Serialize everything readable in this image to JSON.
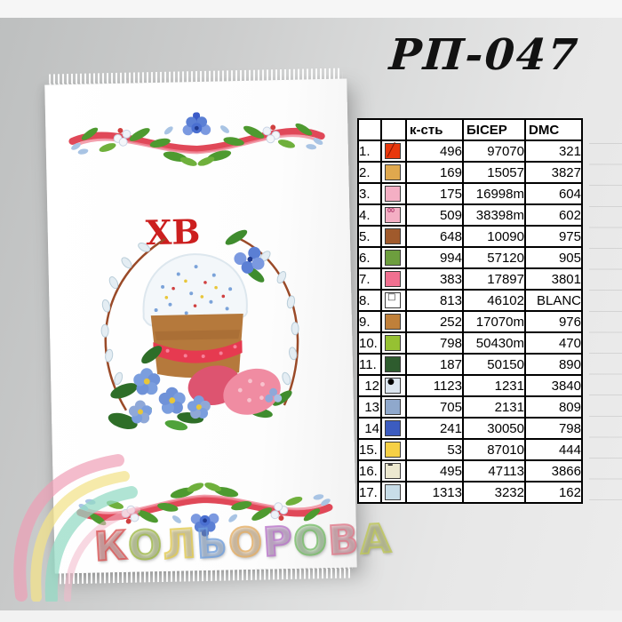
{
  "page": {
    "code": "РП-047"
  },
  "towel": {
    "monogram": "ХВ"
  },
  "brand": {
    "name": "КОЛЬОРОВА",
    "letters": [
      {
        "ch": "К",
        "color": "#d95050"
      },
      {
        "ch": "О",
        "color": "#9fb944"
      },
      {
        "ch": "Л",
        "color": "#e3cb4e"
      },
      {
        "ch": "Ь",
        "color": "#6f9fdd"
      },
      {
        "ch": "О",
        "color": "#e5ad62"
      },
      {
        "ch": "Р",
        "color": "#b873c9"
      },
      {
        "ch": "О",
        "color": "#77bd68"
      },
      {
        "ch": "В",
        "color": "#e07788"
      },
      {
        "ch": "А",
        "color": "#bfc855"
      }
    ]
  },
  "table": {
    "headers": {
      "num": "",
      "swatch": "",
      "qty": "к-сть",
      "bead": "БІСЕР",
      "dmc": "DMC"
    },
    "rows": [
      {
        "num": "1.",
        "symbol": "diagonal",
        "color": "#e8380d",
        "qty": "496",
        "bead": "97070",
        "dmc": "321"
      },
      {
        "num": "2.",
        "symbol": "",
        "color": "#dfa84e",
        "qty": "169",
        "bead": "15057",
        "dmc": "3827"
      },
      {
        "num": "3.",
        "symbol": "",
        "color": "#f4afc4",
        "qty": "175",
        "bead": "16998m",
        "dmc": "604"
      },
      {
        "num": "4.",
        "symbol": "infinity",
        "color": "#f4afc4",
        "qty": "509",
        "bead": "38398m",
        "dmc": "602"
      },
      {
        "num": "5.",
        "symbol": "",
        "color": "#a05a2c",
        "qty": "648",
        "bead": "10090",
        "dmc": "975"
      },
      {
        "num": "6.",
        "symbol": "",
        "color": "#6d9e3e",
        "qty": "994",
        "bead": "57120",
        "dmc": "905"
      },
      {
        "num": "7.",
        "symbol": "",
        "color": "#f07090",
        "qty": "383",
        "bead": "17897",
        "dmc": "3801"
      },
      {
        "num": "8.",
        "symbol": "square",
        "color": "#ffffff",
        "qty": "813",
        "bead": "46102",
        "dmc": "BLANC"
      },
      {
        "num": "9.",
        "symbol": "",
        "color": "#c0803a",
        "qty": "252",
        "bead": "17070m",
        "dmc": "976"
      },
      {
        "num": "10.",
        "symbol": "",
        "color": "#96c132",
        "qty": "798",
        "bead": "50430m",
        "dmc": "470"
      },
      {
        "num": "11.",
        "symbol": "",
        "color": "#2e5c2e",
        "qty": "187",
        "bead": "50150",
        "dmc": "890"
      },
      {
        "num": "12",
        "symbol": "dot",
        "color": "#dce6f0",
        "qty": "1123",
        "bead": "1231",
        "dmc": "3840"
      },
      {
        "num": "13",
        "symbol": "",
        "color": "#8fa8cc",
        "qty": "705",
        "bead": "2131",
        "dmc": "809"
      },
      {
        "num": "14",
        "symbol": "",
        "color": "#3c5cc0",
        "qty": "241",
        "bead": "30050",
        "dmc": "798"
      },
      {
        "num": "15.",
        "symbol": "",
        "color": "#f6d045",
        "qty": "53",
        "bead": "87010",
        "dmc": "444"
      },
      {
        "num": "16.",
        "symbol": "dash",
        "color": "#ece8d0",
        "qty": "495",
        "bead": "47113",
        "dmc": "3866"
      },
      {
        "num": "17.",
        "symbol": "",
        "color": "#c8dde8",
        "qty": "1313",
        "bead": "3232",
        "dmc": "162"
      }
    ]
  }
}
